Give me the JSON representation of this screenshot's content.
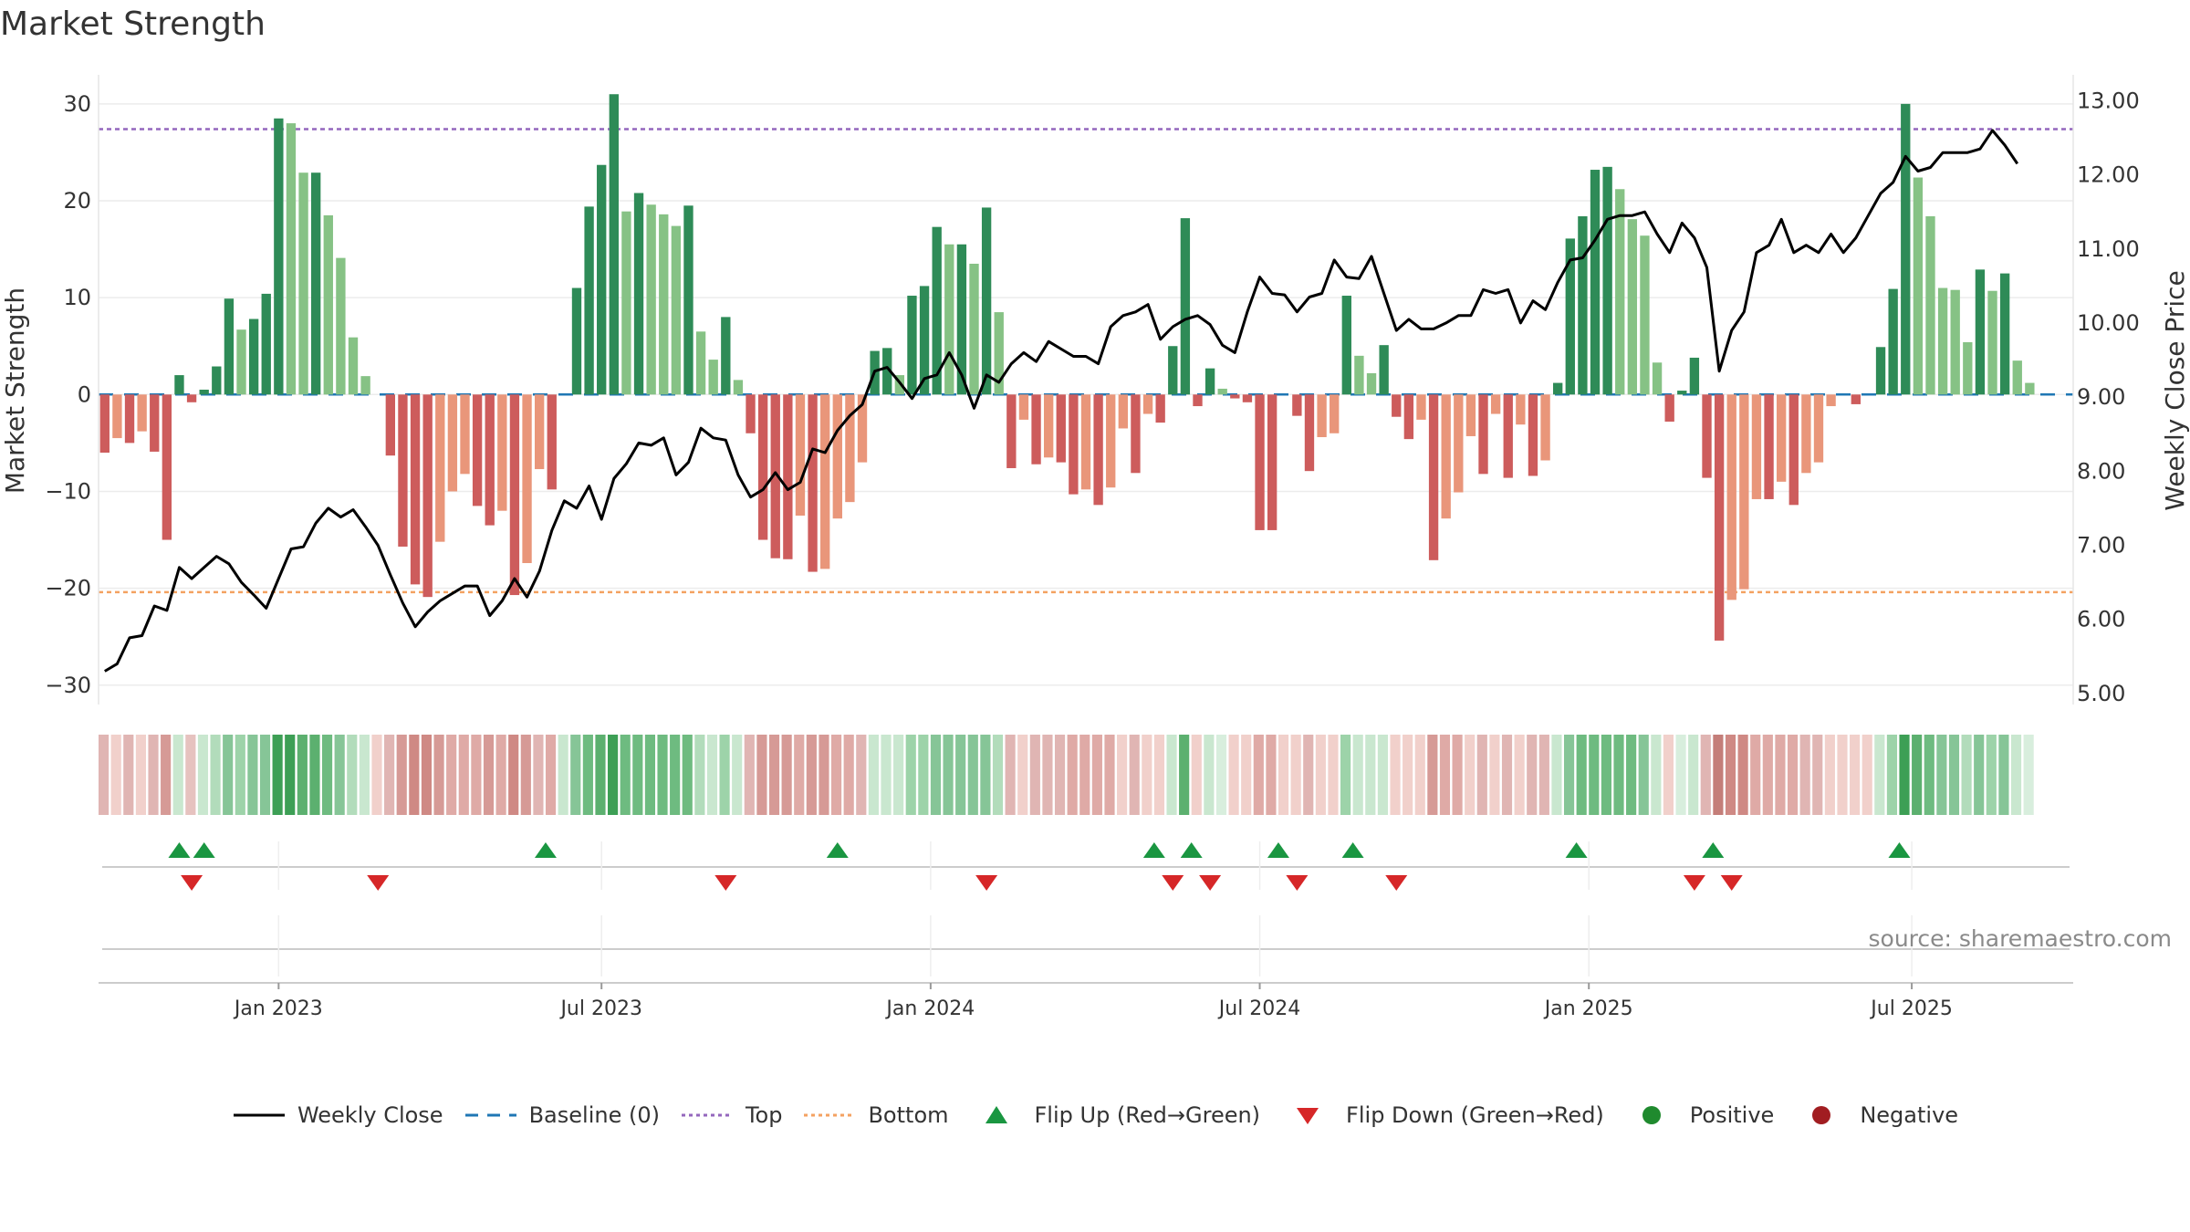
{
  "chart_data": {
    "type": "bar",
    "title": "Market Strength",
    "ylabel": "Market Strength",
    "y2label": "Weekly Close Price",
    "ylim": [
      -32,
      33
    ],
    "y2lim": [
      4.85,
      13.35
    ],
    "yticks": [
      30,
      20,
      10,
      0,
      -10,
      -20,
      -30
    ],
    "yticklabels": [
      "30",
      "20",
      "10",
      "0",
      "−10",
      "−20",
      "−30"
    ],
    "y2ticks": [
      13,
      12,
      11,
      10,
      9,
      8,
      7,
      6,
      5
    ],
    "y2ticklabels": [
      "13.00",
      "12.00",
      "11.00",
      "10.00",
      "9.00",
      "8.00",
      "7.00",
      "6.00",
      "5.00"
    ],
    "top_level": 27.4,
    "bottom_level": -20.4,
    "x_range": [
      -14.5,
      144.5
    ],
    "xticks": [
      {
        "week": 0,
        "label": "Jan 2023"
      },
      {
        "week": 26,
        "label": "Jul 2023"
      },
      {
        "week": 52.5,
        "label": "Jan 2024"
      },
      {
        "week": 79,
        "label": "Jul 2024"
      },
      {
        "week": 105.5,
        "label": "Jan 2025"
      },
      {
        "week": 131.5,
        "label": "Jul 2025"
      }
    ],
    "series": [
      {
        "name": "Market Strength",
        "values": [
          -6,
          -4.5,
          -5,
          -3.8,
          -5.9,
          -15,
          2,
          -0.8,
          0.5,
          2.9,
          9.9,
          6.7,
          7.8,
          10.4,
          28.5,
          28,
          22.9,
          22.9,
          18.5,
          14.1,
          5.9,
          1.9,
          0,
          -6.3,
          -15.7,
          -19.6,
          -20.9,
          -15.2,
          -10,
          -8.2,
          -11.5,
          -13.5,
          -12,
          -20.7,
          -17.4,
          -7.7,
          -9.8,
          0,
          11,
          19.4,
          23.7,
          31,
          18.9,
          20.8,
          19.6,
          18.6,
          17.4,
          19.5,
          6.5,
          3.6,
          8,
          1.5,
          -4,
          -15,
          -16.9,
          -17,
          -12.5,
          -18.3,
          -18,
          -12.8,
          -11.1,
          -7,
          4.5,
          4.8,
          2,
          10.2,
          11.2,
          17.3,
          15.5,
          15.5,
          13.5,
          19.3,
          8.5,
          -7.6,
          -2.6,
          -7.2,
          -6.5,
          -7,
          -10.3,
          -9.8,
          -11.4,
          -9.6,
          -3.5,
          -8.1,
          -2,
          -2.9,
          5,
          18.2,
          -1.2,
          2.7,
          0.6,
          -0.4,
          -0.8,
          -14,
          -14,
          0,
          -2.2,
          -7.9,
          -4.4,
          -4,
          10.2,
          4,
          2.2,
          5.1,
          -2.3,
          -4.6,
          -2.6,
          -17.1,
          -12.8,
          -10.1,
          -4.3,
          -8.2,
          -2,
          -8.6,
          -3.1,
          -8.4,
          -6.8,
          1.2,
          16.1,
          18.4,
          23.2,
          23.5,
          21.2,
          18.1,
          16.4,
          3.3,
          -2.8,
          0.4,
          3.8,
          -8.6,
          -25.4,
          -21.2,
          -20.1,
          -10.8,
          -10.8,
          -9,
          -11.4,
          -8.1,
          -7,
          -1.2,
          0,
          -1,
          0,
          4.9,
          10.9,
          30,
          22.4,
          18.4,
          11,
          10.8,
          5.4,
          12.9,
          10.7,
          12.5,
          3.5,
          1.2
        ]
      },
      {
        "name": "Weekly Close",
        "values": [
          5.3,
          5.4,
          5.75,
          5.78,
          6.18,
          6.12,
          6.7,
          6.55,
          6.7,
          6.85,
          6.75,
          6.5,
          6.33,
          6.15,
          6.55,
          6.95,
          6.98,
          7.3,
          7.5,
          7.38,
          7.48,
          7.25,
          7.0,
          6.6,
          6.22,
          5.9,
          6.1,
          6.25,
          6.35,
          6.45,
          6.45,
          6.05,
          6.25,
          6.55,
          6.3,
          6.65,
          7.2,
          7.6,
          7.5,
          7.8,
          7.35,
          7.9,
          8.1,
          8.38,
          8.35,
          8.45,
          7.95,
          8.12,
          8.58,
          8.45,
          8.42,
          7.95,
          7.65,
          7.75,
          7.98,
          7.75,
          7.85,
          8.3,
          8.25,
          8.55,
          8.75,
          8.9,
          9.35,
          9.4,
          9.2,
          8.98,
          9.25,
          9.3,
          9.6,
          9.3,
          8.85,
          9.3,
          9.2,
          9.45,
          9.6,
          9.48,
          9.75,
          9.65,
          9.55,
          9.55,
          9.45,
          9.95,
          10.1,
          10.15,
          10.25,
          9.78,
          9.95,
          10.05,
          10.1,
          9.98,
          9.7,
          9.6,
          10.15,
          10.62,
          10.4,
          10.38,
          10.15,
          10.35,
          10.4,
          10.85,
          10.62,
          10.6,
          10.9,
          10.4,
          9.9,
          10.05,
          9.92,
          9.92,
          10.0,
          10.1,
          10.1,
          10.45,
          10.4,
          10.45,
          10.0,
          10.3,
          10.18,
          10.55,
          10.85,
          10.88,
          11.12,
          11.4,
          11.45,
          11.45,
          11.5,
          11.2,
          10.95,
          11.35,
          11.15,
          10.75,
          9.35,
          9.9,
          10.15,
          10.95,
          11.05,
          11.4,
          10.95,
          11.05,
          10.95,
          11.2,
          10.95,
          11.15,
          11.45,
          11.75,
          11.9,
          12.25,
          12.05,
          12.1,
          12.3,
          12.3,
          12.3,
          12.35,
          12.6,
          12.4,
          12.15
        ]
      }
    ],
    "strip_colors": [
      "#e0b5b3",
      "#f1d0cb",
      "#e0b5b3",
      "#f1d0cb",
      "#e0b5b3",
      "#d69a96",
      "#c9e7cf",
      "#e6c2bf",
      "#c9e7cf",
      "#b2dcbb",
      "#86c597",
      "#9dd3a9",
      "#86c597",
      "#86c597",
      "#3d9f55",
      "#3d9f55",
      "#5cb06f",
      "#5cb06f",
      "#6ebb80",
      "#86c597",
      "#b2dcbb",
      "#c9e7cf",
      "#f1d0cb",
      "#e0b5b3",
      "#d69a96",
      "#cf8984",
      "#cf8984",
      "#d69a96",
      "#dfaaa6",
      "#dfaaa6",
      "#dfaaa6",
      "#d69a96",
      "#dfaaa6",
      "#cf8984",
      "#d69a96",
      "#e0b5b3",
      "#dfaaa6",
      "#c9e7cf",
      "#86c597",
      "#6ebb80",
      "#5cb06f",
      "#3d9f55",
      "#6ebb80",
      "#6ebb80",
      "#6ebb80",
      "#6ebb80",
      "#6ebb80",
      "#6ebb80",
      "#b2dcbb",
      "#c9e7cf",
      "#9dd3a9",
      "#c9e7cf",
      "#e0b5b3",
      "#d69a96",
      "#d69a96",
      "#d69a96",
      "#dfaaa6",
      "#d69a96",
      "#d69a96",
      "#dfaaa6",
      "#dfaaa6",
      "#e0b5b3",
      "#c9e7cf",
      "#c9e7cf",
      "#c9e7cf",
      "#9dd3a9",
      "#9dd3a9",
      "#86c597",
      "#86c597",
      "#86c597",
      "#86c597",
      "#86c597",
      "#b2dcbb",
      "#e0b5b3",
      "#f1d0cb",
      "#e0b5b3",
      "#e0b5b3",
      "#e0b5b3",
      "#dfaaa6",
      "#dfaaa6",
      "#dfaaa6",
      "#dfaaa6",
      "#f1d0cb",
      "#e0b5b3",
      "#f1d0cb",
      "#f1d0cb",
      "#c9e7cf",
      "#5cb06f",
      "#f1d0cb",
      "#c9e7cf",
      "#d8eedd",
      "#f1d0cb",
      "#f1d0cb",
      "#dfaaa6",
      "#dfaaa6",
      "#f1d0cb",
      "#f1d0cb",
      "#e0b5b3",
      "#f1d0cb",
      "#f1d0cb",
      "#9dd3a9",
      "#c9e7cf",
      "#c9e7cf",
      "#c9e7cf",
      "#f1d0cb",
      "#f1d0cb",
      "#f1d0cb",
      "#d69a96",
      "#dfaaa6",
      "#dfaaa6",
      "#f1d0cb",
      "#e0b5b3",
      "#f1d0cb",
      "#e0b5b3",
      "#f1d0cb",
      "#e0b5b3",
      "#e0b5b3",
      "#c9e7cf",
      "#86c597",
      "#6ebb80",
      "#6ebb80",
      "#6ebb80",
      "#6ebb80",
      "#6ebb80",
      "#86c597",
      "#c9e7cf",
      "#f1d0cb",
      "#d8eedd",
      "#c9e7cf",
      "#e0b5b3",
      "#c47e79",
      "#cf8984",
      "#cf8984",
      "#dfaaa6",
      "#dfaaa6",
      "#dfaaa6",
      "#dfaaa6",
      "#e0b5b3",
      "#e0b5b3",
      "#f1d0cb",
      "#f1d0cb",
      "#f1d0cb",
      "#f1d0cb",
      "#c9e7cf",
      "#9dd3a9",
      "#3d9f55",
      "#5cb06f",
      "#6ebb80",
      "#86c597",
      "#86c597",
      "#b2dcbb",
      "#86c597",
      "#9dd3a9",
      "#86c597",
      "#c9e7cf",
      "#d8eedd"
    ],
    "flip_up_weeks": [
      -8,
      -6,
      21.5,
      45,
      70.5,
      73.5,
      80.5,
      86.5,
      104.5,
      115.5,
      130.5
    ],
    "flip_down_weeks": [
      -7,
      8,
      36,
      57,
      72,
      75,
      82,
      90,
      114,
      117
    ],
    "legend": [
      "Weekly Close",
      "Baseline (0)",
      "Top",
      "Bottom",
      "Flip Up (Red→Green)",
      "Flip Down (Green→Red)",
      "Positive",
      "Negative"
    ],
    "legend_colors": {
      "close": "#000000",
      "baseline": "#1f77b4",
      "top": "#9467bd",
      "bottom": "#f4a261",
      "flip_up": "#1a9641",
      "flip_down": "#d62728",
      "positive": "#1f8a2e",
      "negative": "#a11d21"
    },
    "bar_colors": {
      "pos_strong": "#2e8b57",
      "pos_weak": "#86c285",
      "neg_strong": "#cd5c5c",
      "neg_weak": "#e9967a"
    },
    "source": "source: sharemaestro.com"
  }
}
